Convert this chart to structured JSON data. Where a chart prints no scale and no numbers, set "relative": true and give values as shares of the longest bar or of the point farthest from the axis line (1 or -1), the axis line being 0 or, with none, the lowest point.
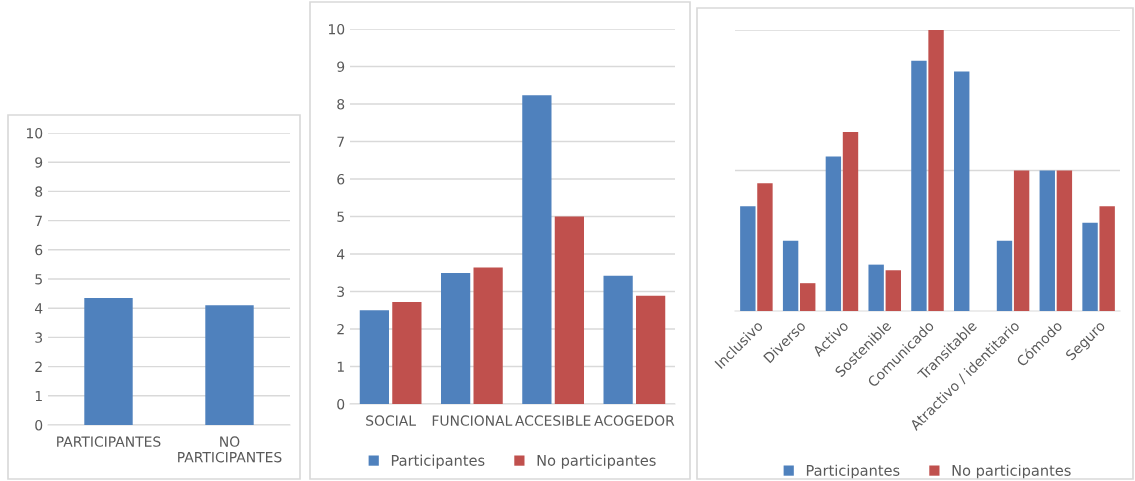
{
  "chart_data": [
    {
      "type": "bar",
      "categories": [
        "PARTICIPANTES",
        "NO\nPARTICIPANTES"
      ],
      "values": [
        4.35,
        4.1
      ],
      "color": "#4f81bd",
      "ylim": [
        0,
        10
      ],
      "yticks": [
        0,
        1,
        2,
        3,
        4,
        5,
        6,
        7,
        8,
        9,
        10
      ],
      "grid": "y",
      "legend": false
    },
    {
      "type": "bar",
      "categories": [
        "SOCIAL",
        "FUNCIONAL",
        "ACCESIBLE",
        "ACOGEDOR"
      ],
      "series": [
        {
          "name": "Participantes",
          "color": "#4f81bd",
          "values": [
            2.5,
            3.49,
            8.23,
            3.42
          ]
        },
        {
          "name": "No participantes",
          "color": "#c0504d",
          "values": [
            2.72,
            3.64,
            5.0,
            2.89
          ]
        }
      ],
      "ylim": [
        0,
        10
      ],
      "yticks": [
        0,
        1,
        2,
        3,
        4,
        5,
        6,
        7,
        8,
        9,
        10
      ],
      "grid": "y",
      "legend": "bottom"
    },
    {
      "type": "bar",
      "relative": true,
      "categories": [
        "Inclusivo",
        "Diverso",
        "Activo",
        "Sostenible",
        "Comunicado",
        "Transitable",
        "Atractivo / identitario",
        "Cómodo",
        "Seguro"
      ],
      "series": [
        {
          "name": "Participantes",
          "color": "#4f81bd",
          "values": [
            0.373,
            0.25,
            0.55,
            0.165,
            0.891,
            0.852,
            0.25,
            0.5,
            0.314
          ]
        },
        {
          "name": "No participantes",
          "color": "#c0504d",
          "values": [
            0.455,
            0.099,
            0.637,
            0.145,
            1,
            0,
            0.5,
            0.5,
            0.373
          ]
        }
      ],
      "ref_lines": [
        {
          "axis": "y",
          "value": 0.5,
          "color": "#d9d9d9"
        },
        {
          "axis": "y",
          "value": 1,
          "color": "#d9d9d9"
        }
      ],
      "legend": "bottom"
    }
  ]
}
